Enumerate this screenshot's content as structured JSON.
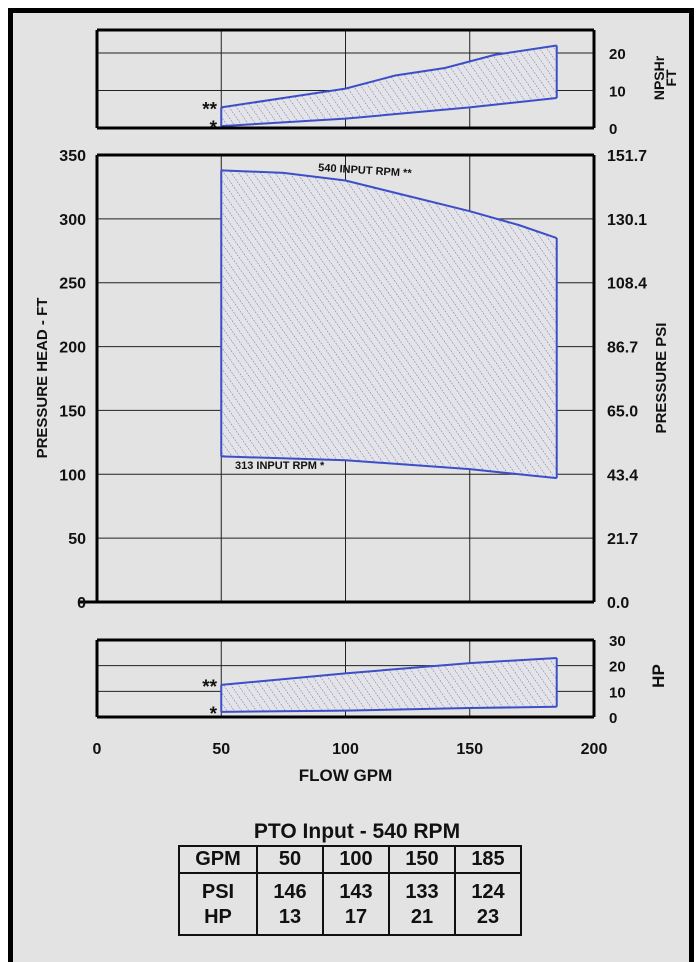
{
  "chart_data": [
    {
      "type": "area",
      "title": "",
      "ylabel": "NPSHr FT",
      "ylim": [
        0,
        20
      ],
      "yticks": [
        "20",
        "10",
        "0"
      ],
      "series": [
        {
          "name": "**",
          "x": [
            50,
            75,
            100,
            120,
            140,
            160,
            185
          ],
          "values": [
            5.5,
            8,
            10.5,
            14,
            16,
            19.5,
            22
          ]
        },
        {
          "name": "*",
          "x": [
            50,
            100,
            150,
            185
          ],
          "values": [
            0.5,
            2.5,
            5.5,
            8
          ]
        }
      ],
      "markers": [
        "**",
        "*"
      ]
    },
    {
      "type": "area",
      "title": "",
      "xlabel": "FLOW GPM",
      "ylabel": "PRESSURE HEAD - FT",
      "y2label": "PRESSURE PSI",
      "xlim": [
        0,
        200
      ],
      "ylim": [
        0,
        350
      ],
      "xticks": [
        "0",
        "50",
        "100",
        "150",
        "200"
      ],
      "yticks": [
        "0",
        "50",
        "100",
        "150",
        "200",
        "250",
        "300",
        "350"
      ],
      "y2ticks": [
        "0.0",
        "21.7",
        "43.4",
        "65.0",
        "86.7",
        "108.4",
        "130.1",
        "151.7"
      ],
      "grid": true,
      "series": [
        {
          "name": "540 INPUT RPM **",
          "x": [
            50,
            75,
            100,
            125,
            150,
            170,
            185
          ],
          "values": [
            338,
            336,
            330,
            318,
            306,
            295,
            285
          ]
        },
        {
          "name": "313 INPUT RPM *",
          "x": [
            50,
            100,
            150,
            185
          ],
          "values": [
            114,
            111,
            104,
            97
          ]
        }
      ]
    },
    {
      "type": "area",
      "title": "",
      "ylabel": "HP",
      "ylim": [
        0,
        30
      ],
      "yticks": [
        "30",
        "20",
        "10",
        "0"
      ],
      "series": [
        {
          "name": "**",
          "x": [
            50,
            100,
            150,
            185
          ],
          "values": [
            12.5,
            17,
            21,
            23
          ]
        },
        {
          "name": "*",
          "x": [
            50,
            100,
            150,
            185
          ],
          "values": [
            2,
            2.5,
            3.5,
            4
          ]
        }
      ],
      "markers": [
        "**",
        "*"
      ]
    },
    {
      "type": "table",
      "title": "PTO Input - 540 RPM",
      "header": [
        "GPM",
        "50",
        "100",
        "150",
        "185"
      ],
      "rows": [
        [
          "PSI",
          "146",
          "143",
          "133",
          "124"
        ],
        [
          "HP",
          "13",
          "17",
          "21",
          "23"
        ]
      ]
    }
  ]
}
